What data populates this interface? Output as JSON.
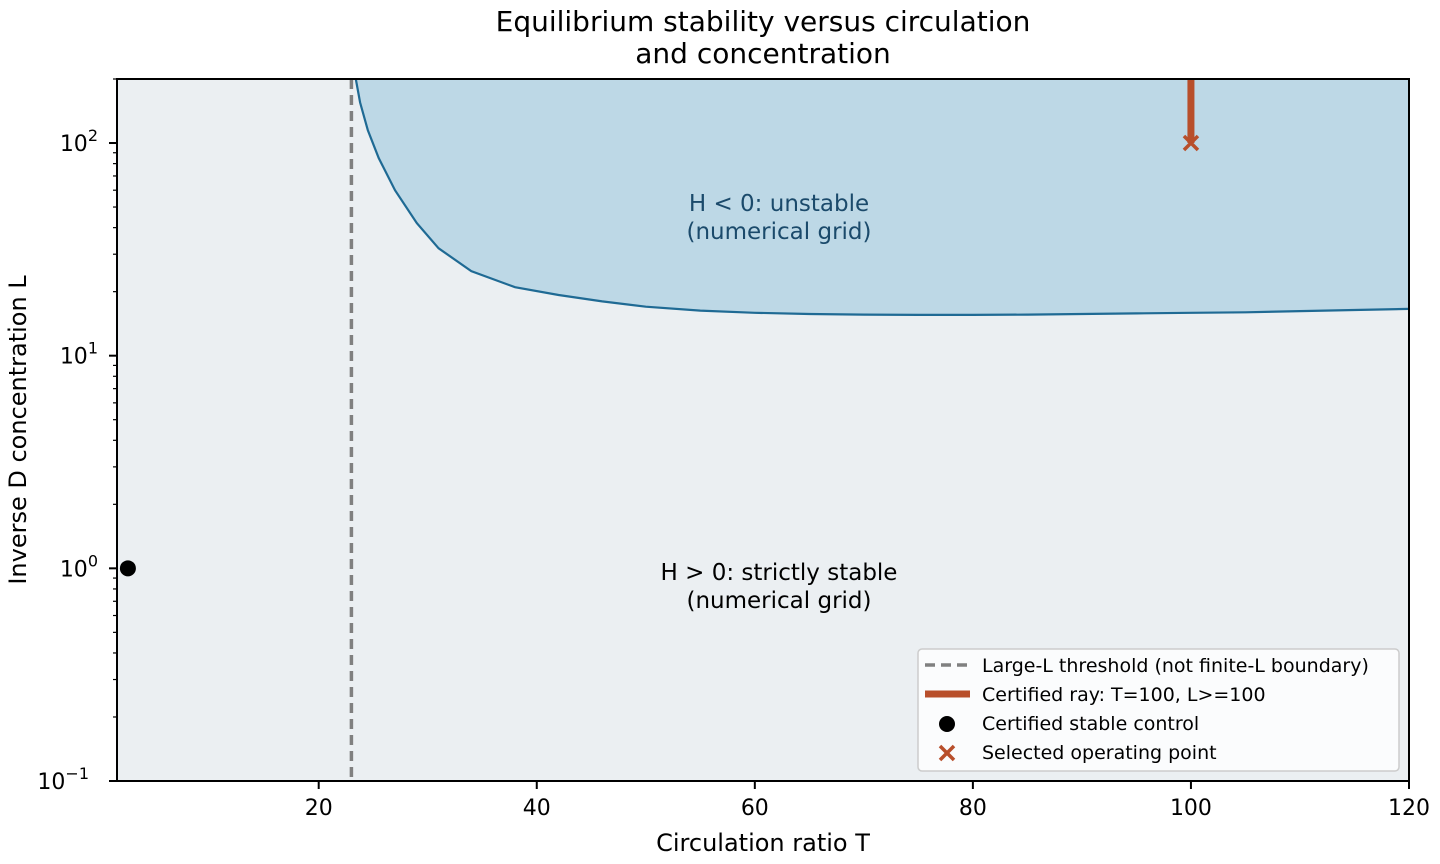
{
  "chart_data": {
    "type": "area",
    "title": [
      "Equilibrium stability versus circulation",
      "and concentration"
    ],
    "xlabel": "Circulation ratio T",
    "ylabel": "Inverse D concentration L",
    "xlim": [
      1.5,
      120
    ],
    "ylim": [
      0.1,
      200
    ],
    "yscale": "log",
    "x_ticks": [
      20,
      40,
      60,
      80,
      100,
      120
    ],
    "x_tick_labels": [
      "20",
      "40",
      "60",
      "80",
      "100",
      "120"
    ],
    "y_ticks": [
      {
        "value": 0.1,
        "base": "10",
        "exp": "−1"
      },
      {
        "value": 1,
        "base": "10",
        "exp": "0"
      },
      {
        "value": 10,
        "base": "10",
        "exp": "1"
      },
      {
        "value": 100,
        "base": "10",
        "exp": "2"
      }
    ],
    "grid": false,
    "colors": {
      "stable_fill": "#ebeff2",
      "unstable_fill": "#bdd8e6",
      "boundary": "#1f6a94",
      "threshold": "#808080",
      "ray": "#b84f2b",
      "control": "#000000",
      "unstable_text": "#1b4a6b",
      "stable_text": "#000000"
    },
    "regions": [
      {
        "name": "unstable",
        "lines": [
          "H < 0: unstable",
          "(numerical grid)"
        ],
        "anchor": [
          53,
          40
        ]
      },
      {
        "name": "stable",
        "lines": [
          "H > 0: strictly stable",
          "(numerical grid)"
        ],
        "anchor": [
          53,
          0.85
        ]
      }
    ],
    "boundary_curve": {
      "x": [
        23.4,
        23.8,
        24.5,
        25.5,
        27,
        29,
        31,
        34,
        38,
        42,
        46,
        50,
        55,
        60,
        65,
        70,
        75,
        80,
        85,
        90,
        95,
        100,
        105,
        110,
        115,
        120
      ],
      "y": [
        200,
        155,
        115,
        85,
        60,
        42,
        32,
        25,
        21,
        19.3,
        18.0,
        17.0,
        16.3,
        15.9,
        15.7,
        15.6,
        15.55,
        15.55,
        15.6,
        15.7,
        15.8,
        15.9,
        16.0,
        16.2,
        16.4,
        16.6
      ]
    },
    "threshold_line": {
      "x": 23,
      "label": "Large-L threshold (not finite-L boundary)"
    },
    "certified_ray": {
      "T": 100,
      "L_from": 100,
      "L_to": 200,
      "label": "Certified ray: T=100, L>=100"
    },
    "stable_control": {
      "T": 2.5,
      "L": 1,
      "label": "Certified stable control"
    },
    "operating_point": {
      "T": 100,
      "L": 100,
      "label": "Selected operating point"
    },
    "legend": {
      "location": "lower-right",
      "entries": [
        "Large-L threshold (not finite-L boundary)",
        "Certified ray: T=100, L>=100",
        "Certified stable control",
        "Selected operating point"
      ]
    }
  }
}
